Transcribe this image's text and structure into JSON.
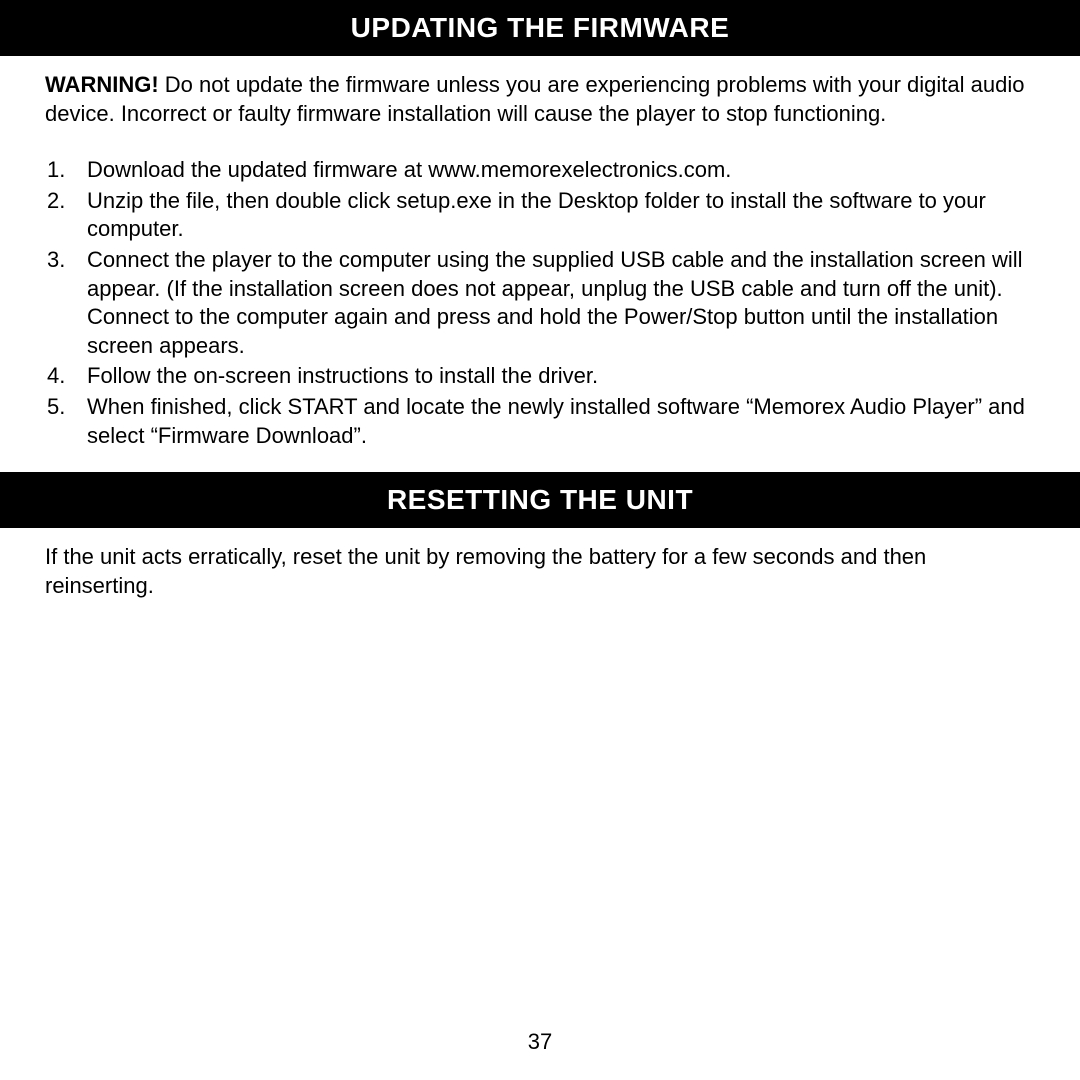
{
  "colors": {
    "header_bg": "#000000",
    "header_text": "#ffffff",
    "body_bg": "#ffffff",
    "body_text": "#000000"
  },
  "typography": {
    "header_fontsize": 28,
    "body_fontsize": 22,
    "header_weight": "bold"
  },
  "section1": {
    "header": "UPDATING THE FIRMWARE",
    "warning_label": "WARNING!",
    "warning_text": " Do not update the firmware unless you are experiencing problems with your digital audio device. Incorrect or faulty firmware installation will cause the player to stop functioning.",
    "steps": [
      "Download the updated firmware at www.memorexelectronics.com.",
      "Unzip the file, then double click setup.exe in the Desktop folder to install the software to your computer.",
      "Connect the player to the computer using the supplied USB cable and the installation screen will appear. (If the installation screen does not appear, unplug the USB cable and turn off the unit). Connect to the computer again and press and hold the Power/Stop button until the installation screen appears.",
      "Follow the on-screen instructions to install the driver.",
      "When finished, click START and locate the newly installed software “Memorex Audio Player” and select “Firmware Download”."
    ]
  },
  "section2": {
    "header": "RESETTING THE UNIT",
    "text": "If the unit acts erratically, reset the unit by removing the battery for a few seconds and then reinserting."
  },
  "page_number": "37"
}
